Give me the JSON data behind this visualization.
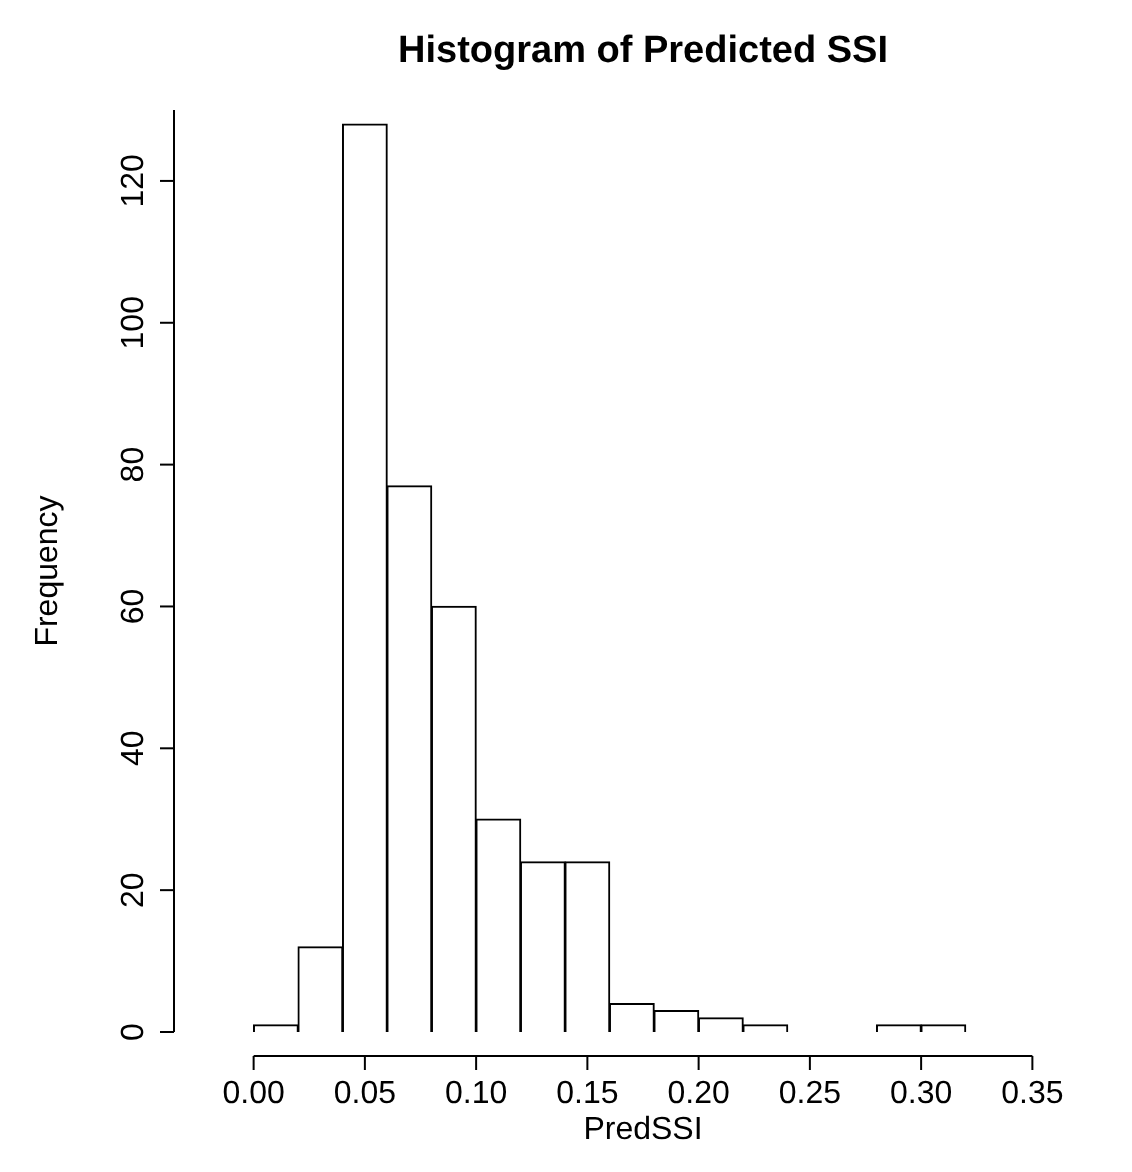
{
  "chart_data": {
    "type": "histogram",
    "title": "Histogram of Predicted SSI",
    "xlabel": "PredSSI",
    "ylabel": "Frequency",
    "bins": [
      0,
      0.02,
      0.04,
      0.06,
      0.08,
      0.1,
      0.12,
      0.14,
      0.16,
      0.18,
      0.2,
      0.22,
      0.24,
      0.26,
      0.28,
      0.3,
      0.32
    ],
    "values": [
      1,
      12,
      128,
      77,
      60,
      30,
      24,
      24,
      4,
      3,
      2,
      1,
      0,
      0,
      1,
      1
    ],
    "color": "#ffffff",
    "xlim": [
      0,
      0.35
    ],
    "xticks": [
      {
        "value": 0,
        "label": "0.00"
      },
      {
        "value": 0.05,
        "label": "0.05"
      },
      {
        "value": 0.1,
        "label": "0.10"
      },
      {
        "value": 0.15,
        "label": "0.15"
      },
      {
        "value": 0.2,
        "label": "0.20"
      },
      {
        "value": 0.25,
        "label": "0.25"
      },
      {
        "value": 0.3,
        "label": "0.30"
      },
      {
        "value": 0.35,
        "label": "0.35"
      }
    ],
    "ylim": [
      0,
      130
    ],
    "yticks": [
      0,
      20,
      40,
      60,
      80,
      100,
      120
    ],
    "grid": false,
    "legend": false
  }
}
